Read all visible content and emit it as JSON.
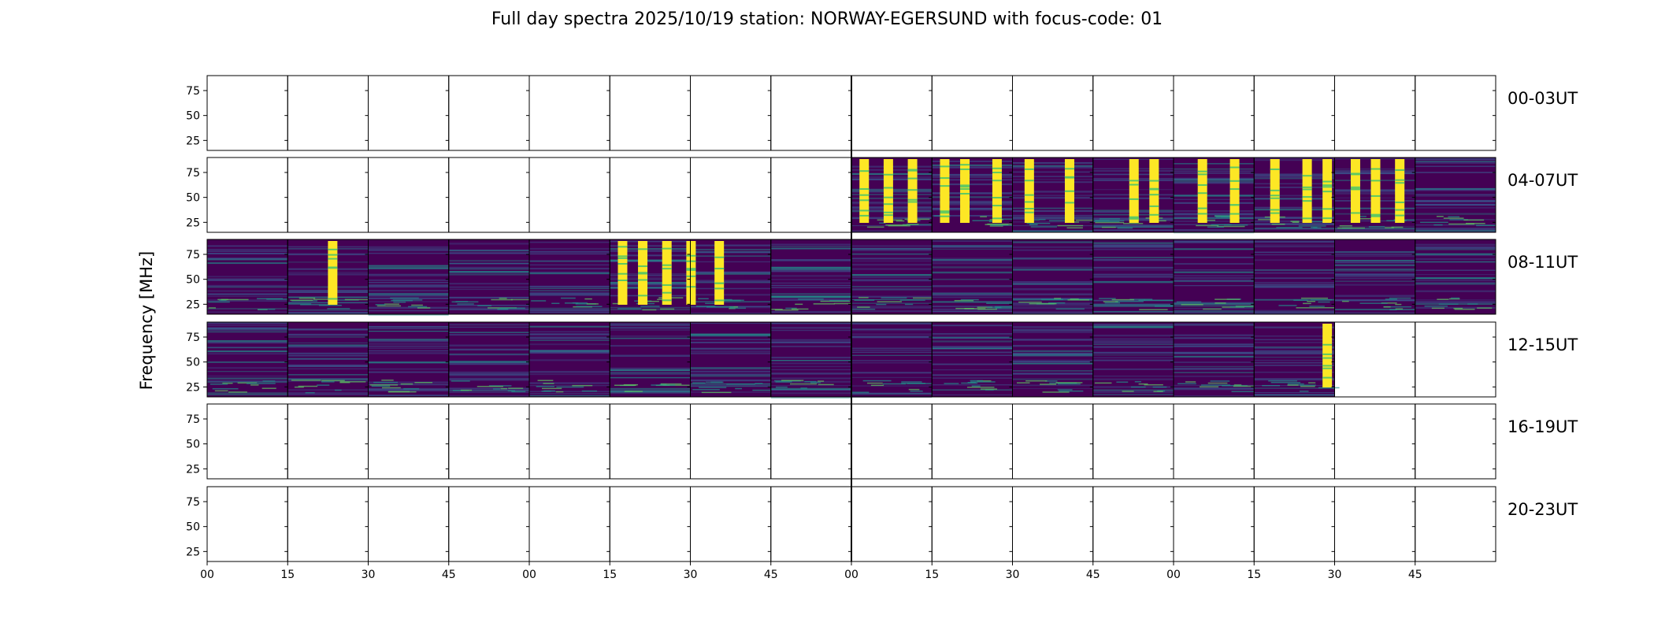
{
  "chart_data": {
    "type": "heatmap",
    "title": "Full day spectra 2025/10/19 station: NORWAY-EGERSUND with focus-code: 01",
    "xlabel": "",
    "ylabel": "Frequency [MHz]",
    "yticks": [
      25,
      50,
      75
    ],
    "ylim": [
      15,
      90
    ],
    "xticks": [
      "00",
      "15",
      "30",
      "45",
      "00",
      "15",
      "30",
      "45",
      "00",
      "15",
      "30",
      "45",
      "00",
      "15",
      "30",
      "45"
    ],
    "rows": [
      {
        "label": "00-03UT",
        "filled": []
      },
      {
        "label": "04-07UT",
        "filled": [
          8,
          9,
          10,
          11,
          12,
          13,
          14,
          15
        ]
      },
      {
        "label": "08-11UT",
        "filled": [
          0,
          1,
          2,
          3,
          4,
          5,
          6,
          7,
          8,
          9,
          10,
          11,
          12,
          13,
          14,
          15
        ]
      },
      {
        "label": "12-15UT",
        "filled": [
          0,
          1,
          2,
          3,
          4,
          5,
          6,
          7,
          8,
          9,
          10,
          11,
          12,
          13
        ]
      },
      {
        "label": "16-19UT",
        "filled": []
      },
      {
        "label": "20-23UT",
        "filled": []
      }
    ],
    "bursts": [
      {
        "row": 1,
        "cols": [
          8.1,
          8.4,
          8.7,
          9.1,
          9.35,
          9.75,
          10.15,
          10.65,
          11.45,
          11.7,
          12.3,
          12.7,
          13.2,
          13.6,
          13.85,
          14.2,
          14.45,
          14.75
        ]
      },
      {
        "row": 2,
        "cols": [
          1.5,
          5.1,
          5.35,
          5.65,
          5.95,
          6.3
        ]
      },
      {
        "row": 3,
        "cols": [
          13.85
        ]
      }
    ],
    "colormap": [
      "#440154",
      "#3b528b",
      "#21918c",
      "#5ec962",
      "#fde725"
    ]
  }
}
